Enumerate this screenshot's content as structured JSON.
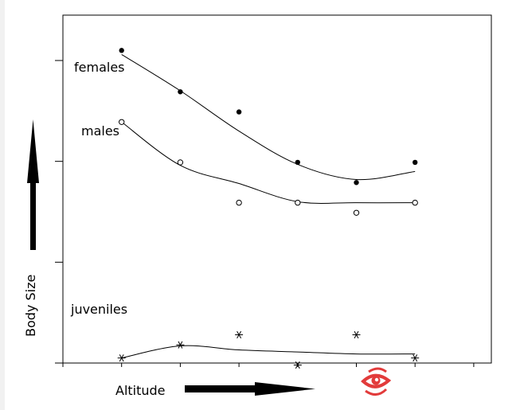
{
  "chart_data": {
    "type": "scatter",
    "xlabel": "Altitude",
    "ylabel": "Body Size",
    "xlim": [
      0,
      7.3
    ],
    "ylim": [
      0,
      3.45
    ],
    "grid": false,
    "x": [
      1,
      2,
      3,
      4,
      5,
      6
    ],
    "series": [
      {
        "name": "females",
        "marker": "filled-circle",
        "values": [
          3.1,
          2.69,
          2.49,
          1.99,
          1.79,
          1.99
        ],
        "curve": [
          3.06,
          2.7,
          2.3,
          1.97,
          1.82,
          1.9
        ]
      },
      {
        "name": "males",
        "marker": "open-circle",
        "values": [
          2.39,
          1.99,
          1.59,
          1.59,
          1.49,
          1.59
        ],
        "curve": [
          2.39,
          1.96,
          1.78,
          1.6,
          1.59,
          1.59
        ]
      },
      {
        "name": "juveniles",
        "marker": "asterisk",
        "values": [
          0.05,
          0.18,
          0.28,
          -0.02,
          0.28,
          0.05
        ],
        "curve": [
          0.05,
          0.17,
          0.13,
          0.11,
          0.09,
          0.09
        ]
      }
    ],
    "colors": {
      "line": "#000000",
      "frame": "#000000",
      "arrow": "#000000"
    }
  },
  "watermark": {
    "icon": "eye-logo-icon",
    "color": "#e23b3b"
  }
}
